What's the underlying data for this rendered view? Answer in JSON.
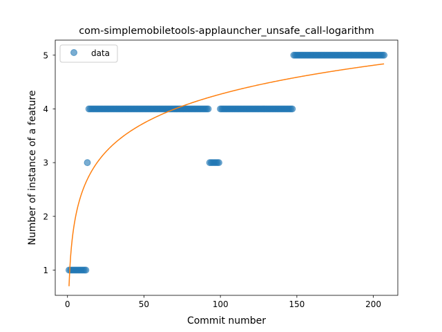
{
  "chart_data": {
    "type": "scatter",
    "title": "com-simplemobiletools-applauncher_unsafe_call-logarithm",
    "xlabel": "Commit number",
    "ylabel": "Number of instance of a feature",
    "xlim": [
      -8,
      216
    ],
    "ylim": [
      0.53,
      5.28
    ],
    "xticks": [
      0,
      50,
      100,
      150,
      200
    ],
    "yticks": [
      1,
      2,
      3,
      4,
      5
    ],
    "legend": {
      "placement": "top-left",
      "entries": [
        "data"
      ]
    },
    "colors": {
      "scatter": "#1f77b4",
      "fit": "#ff7f0e"
    },
    "series": [
      {
        "name": "data",
        "kind": "scatter",
        "segments": [
          {
            "x_start": 1,
            "x_end": 12,
            "y": 1
          },
          {
            "x_start": 13,
            "x_end": 13,
            "y": 3
          },
          {
            "x_start": 14,
            "x_end": 92,
            "y": 4
          },
          {
            "x_start": 93,
            "x_end": 99,
            "y": 3
          },
          {
            "x_start": 100,
            "x_end": 147,
            "y": 4
          },
          {
            "x_start": 148,
            "x_end": 207,
            "y": 5
          }
        ]
      },
      {
        "kind": "line",
        "model": "logarithmic",
        "a": 0.7,
        "b": 0.776,
        "x_range": [
          1,
          207
        ]
      }
    ]
  }
}
